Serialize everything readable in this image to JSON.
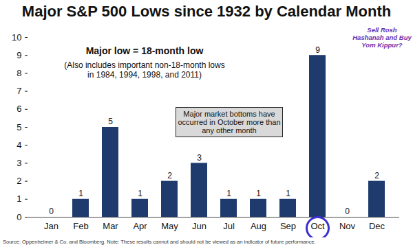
{
  "chart_data": {
    "type": "bar",
    "title": "Major S&P 500 Lows since 1932 by Calendar Month",
    "categories": [
      "Jan",
      "Feb",
      "Mar",
      "Apr",
      "May",
      "Jun",
      "Jul",
      "Aug",
      "Sep",
      "Oct",
      "Nov",
      "Dec"
    ],
    "values": [
      0,
      1,
      5,
      1,
      2,
      3,
      1,
      1,
      1,
      9,
      0,
      2
    ],
    "color": "#1f3b6e",
    "ylim": [
      0,
      10
    ],
    "yticks": [
      0,
      1,
      2,
      3,
      4,
      5,
      6,
      7,
      8,
      9,
      10
    ],
    "grid": false,
    "data_labels": true,
    "annotations": [
      "Major low = 18-month low",
      "(Also includes important non-18-month lows in 1984, 1994, 1998, and 2011)",
      "Major market bottoms have occurred in October more than any other month",
      "Sell Rosh Hashanah and Buy Yom Kippur?"
    ],
    "caption": "Source: Oppenheimer & Co. and Bloomberg. Note: These results cannot and should not be viewed as an indicator of future performance."
  }
}
